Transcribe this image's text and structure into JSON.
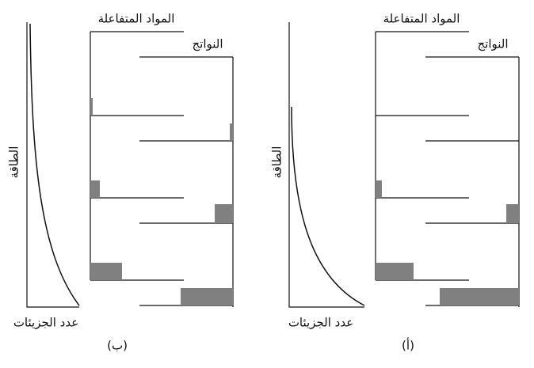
{
  "panels": [
    {
      "label": "(ب)",
      "y_axis": "الطاقة",
      "x_axis": "عدد الجزيئات",
      "reactants": "المواد المتفاعلة",
      "products": "النواتج"
    },
    {
      "label": "(أ)",
      "y_axis": "الطاقة",
      "x_axis": "عدد الجزيئات",
      "reactants": "المواد المتفاعلة",
      "products": "النواتج"
    }
  ]
}
